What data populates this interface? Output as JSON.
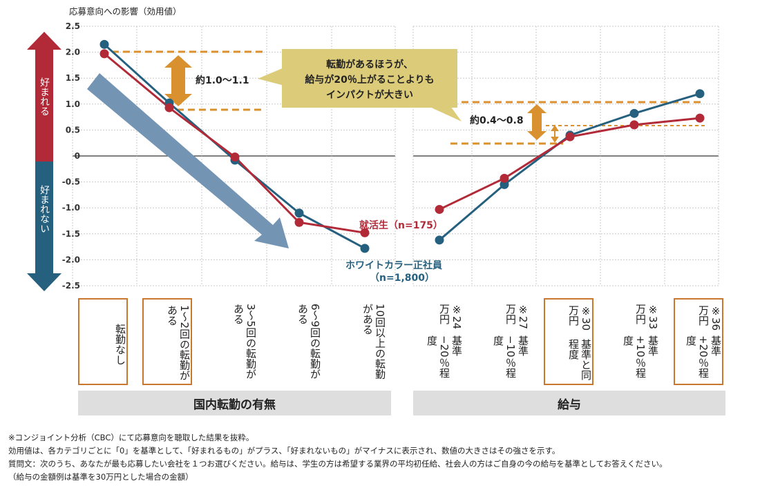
{
  "chart_data": {
    "type": "line",
    "title": "",
    "ylabel": "応募意向への影響（効用値）",
    "ylim": [
      -2.5,
      2.5
    ],
    "yticks": [
      "2.5",
      "2.0",
      "1.5",
      "1.0",
      "0.5",
      "0",
      "-0.5",
      "-1.0",
      "-1.5",
      "-2.0",
      "-2.5"
    ],
    "grid": true,
    "panels": [
      {
        "name": "国内転勤の有無",
        "categories": [
          "転勤なし",
          "1〜2回の転勤がある",
          "3〜5回の転勤がある",
          "6〜9回の転勤がある",
          "10回以上の転勤がある"
        ],
        "series": [
          {
            "name": "就活生（n=175）",
            "color": "#b22a38",
            "values": [
              1.97,
              0.93,
              -0.02,
              -1.28,
              -1.48
            ]
          },
          {
            "name": "ホワイトカラー正社員（n=1,800）",
            "color": "#25607f",
            "values": [
              2.15,
              1.02,
              -0.08,
              -1.1,
              -1.78
            ]
          }
        ]
      },
      {
        "name": "給与",
        "categories": [
          "※24万円 基準−20％程度",
          "※27万円 基準−10％程度",
          "※30万円 基準と同程度",
          "※33万円 基準+10％程度",
          "※36万円 基準+20％程度"
        ],
        "series": [
          {
            "name": "就活生（n=175）",
            "color": "#b22a38",
            "values": [
              -1.03,
              -0.43,
              0.37,
              0.6,
              0.73
            ]
          },
          {
            "name": "ホワイトカラー正社員（n=1,800）",
            "color": "#25607f",
            "values": [
              -1.62,
              -0.55,
              0.4,
              0.82,
              1.2
            ]
          }
        ]
      }
    ],
    "annotations": {
      "callout": "転勤があるほうが、\n給与が20％上がることよりも\nインパクトが大きい",
      "diff_left": "約1.0〜1.1",
      "diff_right": "約0.4〜0.8",
      "label_student": "就活生（n=175）",
      "label_white_line1": "ホワイトカラー正社員",
      "label_white_line2": "（n=1,800）",
      "arrow_up": "好まれる",
      "arrow_down": "好まれない"
    }
  },
  "categories_display": {
    "left": [
      {
        "text": "転勤なし",
        "boxed": true
      },
      {
        "text": "1〜2回の転勤がある",
        "boxed": true
      },
      {
        "text": "3〜5回の転勤がある",
        "boxed": false
      },
      {
        "text": "6〜9回の転勤がある",
        "boxed": false
      },
      {
        "text": "10回以上の転勤がある",
        "boxed": false
      }
    ],
    "right": [
      {
        "col1": "※24万円",
        "col2": "基準−20％程度",
        "boxed": false
      },
      {
        "col1": "※27万円",
        "col2": "基準−10％程度",
        "boxed": false
      },
      {
        "col1": "※30万円",
        "col2": "基準と同程度",
        "boxed": true
      },
      {
        "col1": "※33万円",
        "col2": "基準+10％程度",
        "boxed": false
      },
      {
        "col1": "※36万円",
        "col2": "基準+20％程度",
        "boxed": true
      }
    ]
  },
  "panel_labels": {
    "left": "国内転勤の有無",
    "right": "給与"
  },
  "footnotes": [
    "※コンジョイント分析（CBC）にて応募意向を聴取した結果を抜粋。",
    "効用値は、各カテゴリごとに「0」を基準として、「好まれるもの」がプラス、「好まれないもの」がマイナスに表示され、数値の大きさはその強さを示す。",
    "質問文：次のうち、あなたが最も応募したい会社を１つお選びください。給与は、学生の方は希望する業界の平均初任給、社会人の方はご自身の今の給与を基準としてお答えください。",
    "（給与の金額例は基準を30万円とした場合の金額）"
  ],
  "colors": {
    "student": "#b22a38",
    "white": "#25607f",
    "orange": "#d9902f",
    "callout": "#dccb78",
    "big_arrow": "#7494b3"
  }
}
